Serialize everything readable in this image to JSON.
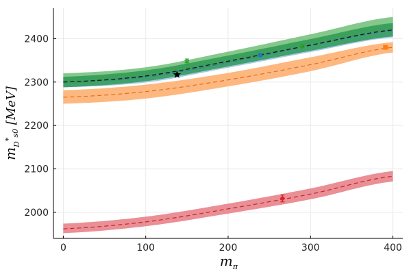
{
  "chart_data": {
    "type": "line",
    "title": "",
    "xlabel": "m_π",
    "ylabel": "m_{D*_{s0}} [MeV]",
    "xlim": [
      -12,
      412
    ],
    "ylim": [
      1940,
      2470
    ],
    "grid": true,
    "legend": "none",
    "xticks": [
      0,
      100,
      200,
      300,
      400
    ],
    "yticks": [
      2000,
      2100,
      2200,
      2300,
      2400
    ],
    "series": [
      {
        "color": "#3a6fb0",
        "fill_color": "#9cc3e6",
        "line": "dashed",
        "x": [
          0,
          100,
          200,
          300,
          400
        ],
        "center": [
          2300,
          2312,
          2345,
          2384,
          2418
        ],
        "lower": [
          2288,
          2299,
          2333,
          2369,
          2403
        ],
        "upper": [
          2312,
          2325,
          2358,
          2398,
          2432
        ]
      },
      {
        "color": "#e36c1f",
        "fill_color": "#fdb072",
        "line": "dashed",
        "x": [
          0,
          100,
          200,
          300,
          400
        ],
        "center": [
          2265,
          2278,
          2305,
          2340,
          2380
        ],
        "lower": [
          2250,
          2262,
          2290,
          2325,
          2368
        ],
        "upper": [
          2281,
          2294,
          2321,
          2357,
          2392
        ]
      },
      {
        "color": "#0b7a3a",
        "fill_color": "#2f9a55",
        "line": "dashed",
        "x": [
          0,
          100,
          200,
          300,
          400
        ],
        "center": [
          2300,
          2314,
          2348,
          2385,
          2420
        ],
        "lower": [
          2288,
          2302,
          2336,
          2372,
          2405
        ],
        "upper": [
          2312,
          2327,
          2361,
          2399,
          2436
        ]
      },
      {
        "color": "#2fa84a",
        "fill_color": "#77c27e",
        "line": "none",
        "x": [
          0,
          100,
          200,
          300,
          400
        ],
        "center": [
          2305,
          2320,
          2354,
          2395,
          2430
        ],
        "lower": [
          2296,
          2310,
          2344,
          2385,
          2420
        ],
        "upper": [
          2320,
          2334,
          2370,
          2410,
          2450
        ]
      },
      {
        "color": "#c0262d",
        "fill_color": "#e8838a",
        "line": "dashed",
        "x": [
          0,
          100,
          200,
          300,
          400
        ],
        "center": [
          1962,
          1978,
          2008,
          2042,
          2083
        ],
        "lower": [
          1952,
          1968,
          1997,
          2030,
          2071
        ],
        "upper": [
          1974,
          1990,
          2020,
          2055,
          2095
        ]
      }
    ],
    "points": [
      {
        "x": 150,
        "y": 2347,
        "err": 6,
        "color": "#2ca02c",
        "marker": "asterisk"
      },
      {
        "x": 239,
        "y": 2362,
        "err": 3,
        "color": "#1f77b4",
        "marker": "circle"
      },
      {
        "x": 290,
        "y": 2383,
        "err": 4,
        "color": "#2ca02c",
        "marker": "asterisk"
      },
      {
        "x": 391,
        "y": 2380,
        "err": 3,
        "color": "#ff7f0e",
        "marker": "square"
      },
      {
        "x": 266,
        "y": 2032,
        "err": 8,
        "color": "#d62728",
        "marker": "diamond"
      },
      {
        "x": 138,
        "y": 2317,
        "err": 0,
        "color": "#000000",
        "marker": "star"
      }
    ]
  }
}
